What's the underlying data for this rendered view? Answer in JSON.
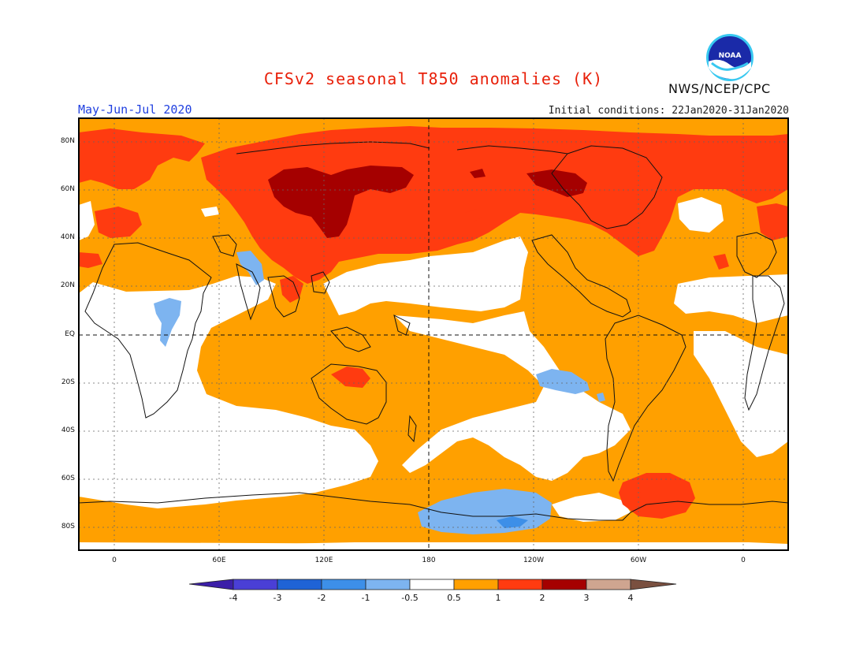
{
  "header": {
    "title": "CFSv2 seasonal T850 anomalies (K)",
    "period": "May-Jun-Jul 2020",
    "initial_conditions": "Initial conditions: 22Jan2020-31Jan2020",
    "agency": "NWS/NCEP/CPC",
    "logo_text": "NOAA"
  },
  "map": {
    "lat_labels": [
      "80N",
      "60N",
      "40N",
      "20N",
      "EQ",
      "20S",
      "40S",
      "60S",
      "80S"
    ],
    "lon_labels": [
      "0",
      "60E",
      "120E",
      "180",
      "120W",
      "60W",
      "0"
    ]
  },
  "colorbar": {
    "labels": [
      "-4",
      "-3",
      "-2",
      "-1",
      "-0.5",
      "0.5",
      "1",
      "2",
      "3",
      "4"
    ],
    "colors": [
      "#3c1fa8",
      "#4a3fd6",
      "#1f63d6",
      "#3d8fe8",
      "#7db4f0",
      "#ffffff",
      "#ffa000",
      "#ff3b10",
      "#a50000",
      "#cfa590",
      "#7a5040"
    ]
  }
}
